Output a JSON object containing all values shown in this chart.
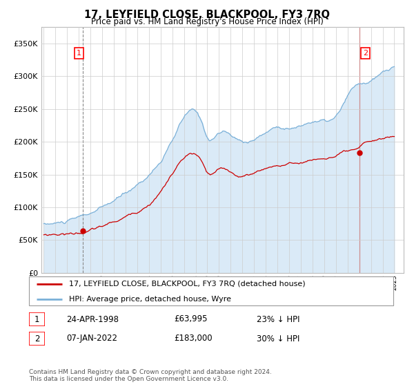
{
  "title": "17, LEYFIELD CLOSE, BLACKPOOL, FY3 7RQ",
  "subtitle": "Price paid vs. HM Land Registry's House Price Index (HPI)",
  "ytick_values": [
    0,
    50000,
    100000,
    150000,
    200000,
    250000,
    300000,
    350000
  ],
  "ylim": [
    0,
    375000
  ],
  "hpi_color": "#7ab0d8",
  "hpi_fill_color": "#daeaf7",
  "price_color": "#cc0000",
  "annotation1_label": "1",
  "annotation2_label": "2",
  "legend_entry1": "17, LEYFIELD CLOSE, BLACKPOOL, FY3 7RQ (detached house)",
  "legend_entry2": "HPI: Average price, detached house, Wyre",
  "table_row1": [
    "1",
    "24-APR-1998",
    "£63,995",
    "23% ↓ HPI"
  ],
  "table_row2": [
    "2",
    "07-JAN-2022",
    "£183,000",
    "30% ↓ HPI"
  ],
  "footnote": "Contains HM Land Registry data © Crown copyright and database right 2024.\nThis data is licensed under the Open Government Licence v3.0.",
  "background_color": "#ffffff",
  "grid_color": "#cccccc",
  "sale1_x": 1998.32,
  "sale1_y": 63995,
  "sale2_x": 2022.04,
  "sale2_y": 183000,
  "xlim_left": 1994.8,
  "xlim_right": 2025.8
}
